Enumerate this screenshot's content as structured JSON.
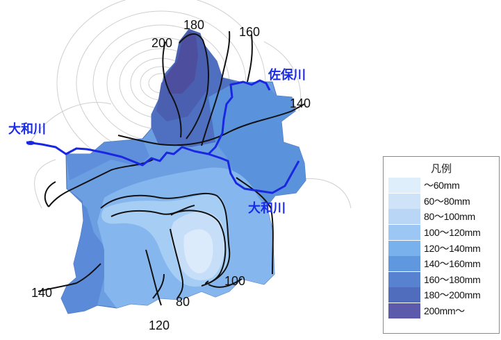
{
  "map": {
    "rivers": [
      {
        "name": "佐保川"
      },
      {
        "name": "大和川"
      },
      {
        "name": "大和川"
      }
    ],
    "contour_labels": [
      "180",
      "160",
      "200",
      "140",
      "140",
      "100",
      "80",
      "120"
    ]
  },
  "legend": {
    "title": "凡例",
    "items": [
      {
        "label": "～60mm",
        "color": "#dfeefb"
      },
      {
        "label": "60～80mm",
        "color": "#cfe3f8"
      },
      {
        "label": "80～100mm",
        "color": "#b9d6f6"
      },
      {
        "label": "100～120mm",
        "color": "#9cc6f3"
      },
      {
        "label": "120～140mm",
        "color": "#79b1ec"
      },
      {
        "label": "140～160mm",
        "color": "#5f98df"
      },
      {
        "label": "160～180mm",
        "color": "#5682cf"
      },
      {
        "label": "180～200mm",
        "color": "#4f6cbd"
      },
      {
        "label": "200mm～",
        "color": "#5c5aaa"
      }
    ]
  }
}
